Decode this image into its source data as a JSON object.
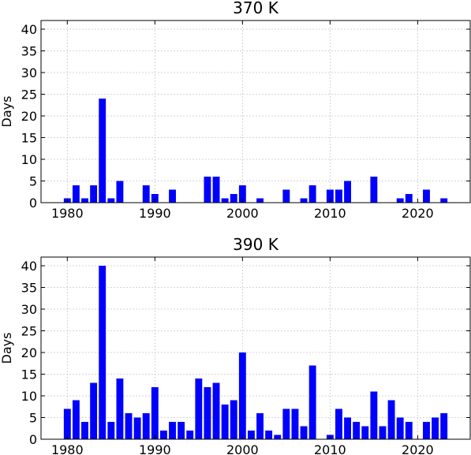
{
  "chart_data": [
    {
      "type": "bar",
      "title": "370 K",
      "xlabel": "",
      "ylabel": "Days",
      "xlim": [
        1977,
        2026
      ],
      "ylim": [
        0,
        42
      ],
      "xticks": [
        1980,
        1990,
        2000,
        2010,
        2020
      ],
      "yticks": [
        0,
        5,
        10,
        15,
        20,
        25,
        30,
        35,
        40
      ],
      "grid": true,
      "color": "#0000ff",
      "x": [
        1980,
        1981,
        1982,
        1983,
        1984,
        1985,
        1986,
        1987,
        1988,
        1989,
        1990,
        1991,
        1992,
        1993,
        1994,
        1995,
        1996,
        1997,
        1998,
        1999,
        2000,
        2001,
        2002,
        2003,
        2004,
        2005,
        2006,
        2007,
        2008,
        2009,
        2010,
        2011,
        2012,
        2013,
        2014,
        2015,
        2016,
        2017,
        2018,
        2019,
        2020,
        2021,
        2022,
        2023
      ],
      "values": [
        1,
        4,
        1,
        4,
        24,
        1,
        5,
        0,
        0,
        4,
        2,
        0,
        3,
        0,
        0,
        0,
        6,
        6,
        1,
        2,
        4,
        0,
        1,
        0,
        0,
        3,
        0,
        1,
        4,
        0,
        3,
        3,
        5,
        0,
        0,
        6,
        0,
        0,
        1,
        2,
        0,
        3,
        0,
        1
      ]
    },
    {
      "type": "bar",
      "title": "390 K",
      "xlabel": "",
      "ylabel": "Days",
      "xlim": [
        1977,
        2026
      ],
      "ylim": [
        0,
        42
      ],
      "xticks": [
        1980,
        1990,
        2000,
        2010,
        2020
      ],
      "yticks": [
        0,
        5,
        10,
        15,
        20,
        25,
        30,
        35,
        40
      ],
      "grid": true,
      "color": "#0000ff",
      "x": [
        1980,
        1981,
        1982,
        1983,
        1984,
        1985,
        1986,
        1987,
        1988,
        1989,
        1990,
        1991,
        1992,
        1993,
        1994,
        1995,
        1996,
        1997,
        1998,
        1999,
        2000,
        2001,
        2002,
        2003,
        2004,
        2005,
        2006,
        2007,
        2008,
        2009,
        2010,
        2011,
        2012,
        2013,
        2014,
        2015,
        2016,
        2017,
        2018,
        2019,
        2020,
        2021,
        2022,
        2023
      ],
      "values": [
        7,
        9,
        4,
        13,
        40,
        4,
        14,
        6,
        5,
        6,
        12,
        2,
        4,
        4,
        2,
        14,
        12,
        13,
        8,
        9,
        20,
        2,
        6,
        2,
        1,
        7,
        7,
        3,
        17,
        0,
        1,
        7,
        5,
        4,
        3,
        11,
        3,
        9,
        5,
        4,
        0,
        4,
        5,
        6
      ]
    }
  ]
}
